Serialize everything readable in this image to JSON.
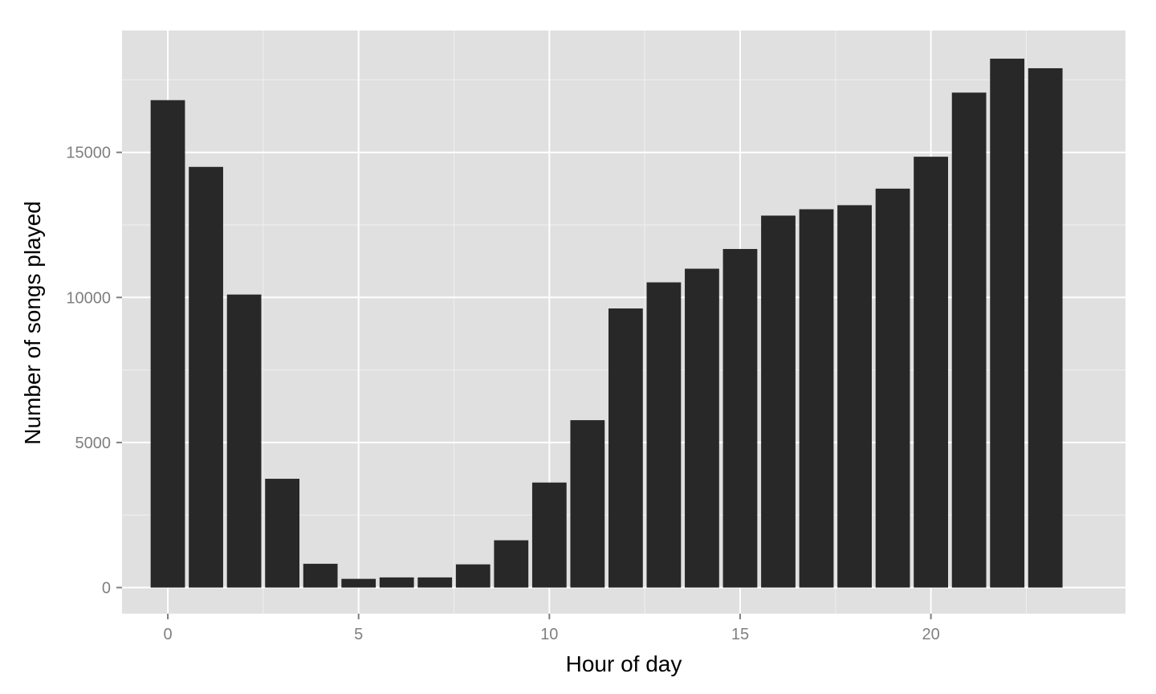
{
  "chart_data": {
    "type": "bar",
    "title": "",
    "xlabel": "Hour of day",
    "ylabel": "Number of songs played",
    "x": [
      0,
      1,
      2,
      3,
      4,
      5,
      6,
      7,
      8,
      9,
      10,
      11,
      12,
      13,
      14,
      15,
      16,
      17,
      18,
      19,
      20,
      21,
      22,
      23
    ],
    "values": [
      16800,
      14500,
      10100,
      3750,
      820,
      300,
      350,
      350,
      800,
      1630,
      3620,
      5770,
      9620,
      10520,
      10990,
      11670,
      12820,
      13040,
      13180,
      13750,
      14850,
      17060,
      18230,
      17900
    ],
    "xlim": [
      -1.2,
      25.1
    ],
    "ylim": [
      -900,
      19200
    ],
    "x_ticks": [
      0,
      5,
      10,
      15,
      20
    ],
    "x_tick_labels": [
      "0",
      "5",
      "10",
      "15",
      "20"
    ],
    "y_ticks": [
      0,
      5000,
      10000,
      15000
    ],
    "y_tick_labels": [
      "0",
      "5000",
      "10000",
      "15000"
    ],
    "grid": true,
    "colors": {
      "panel_background": "#e0e0e0",
      "bar_fill": "#282828"
    }
  }
}
